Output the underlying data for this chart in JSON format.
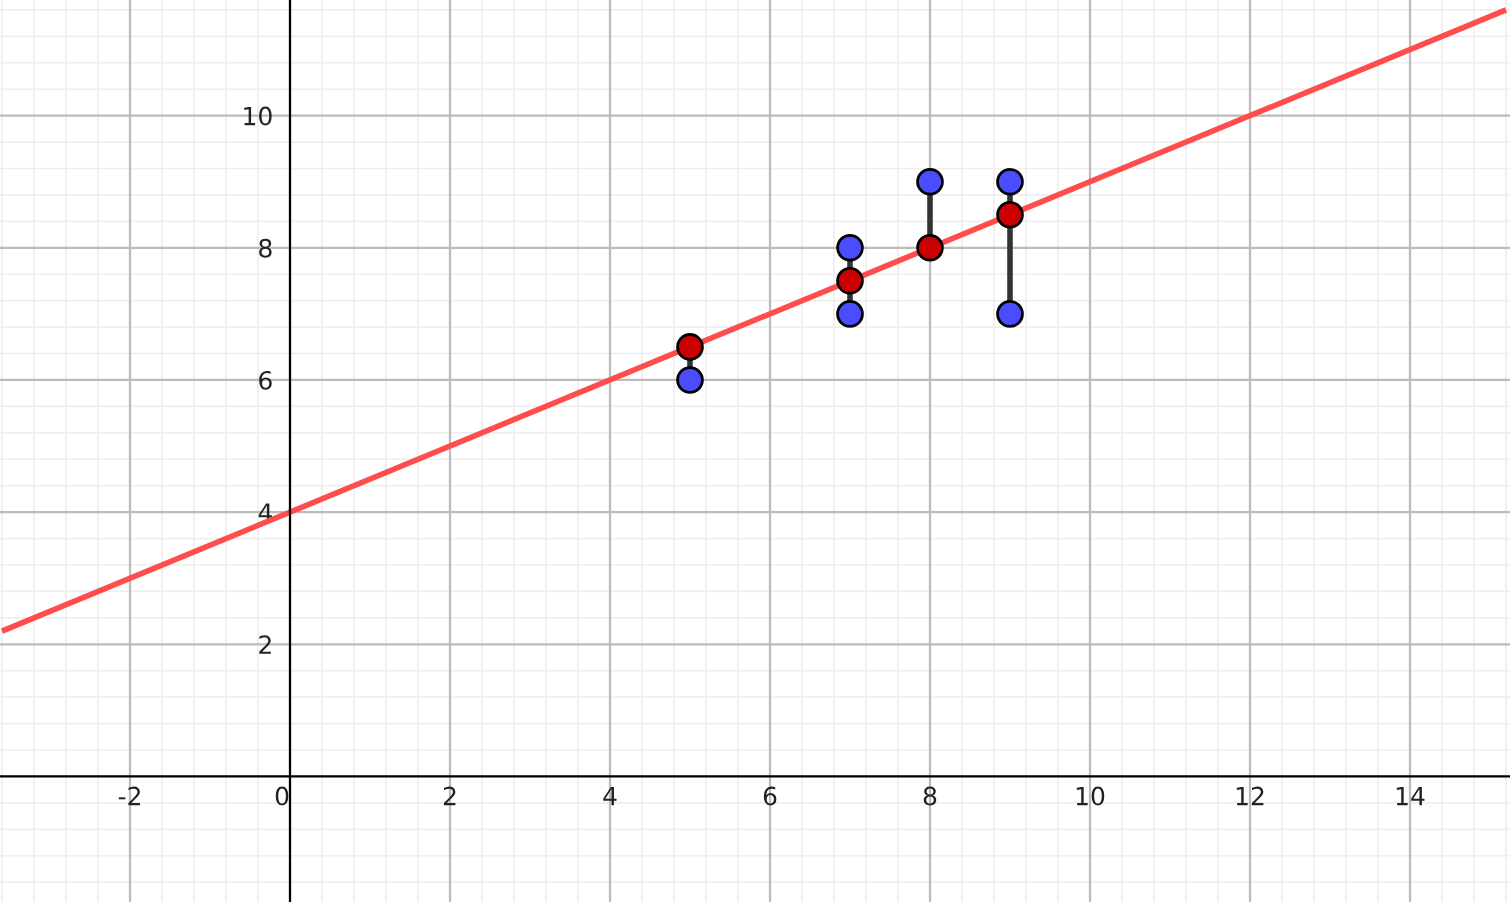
{
  "chart_data": {
    "type": "scatter",
    "xlim": [
      -3.625,
      15.25
    ],
    "ylim": [
      -1.9,
      11.75
    ],
    "xticks": [
      -2,
      0,
      2,
      4,
      6,
      8,
      10,
      12,
      14
    ],
    "yticks": [
      2,
      4,
      6,
      8,
      10
    ],
    "grid": true,
    "series": [
      {
        "type": "line",
        "color": "#ff4c4c",
        "x": [
          -3.6,
          15.2
        ],
        "values": [
          2.2,
          11.6
        ],
        "line_style": "solid",
        "marker": "none"
      },
      {
        "type": "line",
        "color": "#333333",
        "x": [
          5,
          5
        ],
        "values": [
          6,
          6.5
        ],
        "marker": "none"
      },
      {
        "type": "line",
        "color": "#333333",
        "x": [
          7,
          7
        ],
        "values": [
          7,
          8
        ],
        "marker": "none"
      },
      {
        "type": "line",
        "color": "#333333",
        "x": [
          8,
          8
        ],
        "values": [
          8,
          9
        ],
        "marker": "none"
      },
      {
        "type": "line",
        "color": "#333333",
        "x": [
          9,
          9
        ],
        "values": [
          7,
          9
        ],
        "marker": "none"
      },
      {
        "color": "#4c4cff",
        "x": [
          5,
          7,
          7,
          8,
          9,
          9
        ],
        "values": [
          6,
          8,
          7,
          9,
          9,
          7
        ],
        "marker": "circle"
      },
      {
        "color": "#cc0000",
        "x": [
          5,
          7,
          8,
          9
        ],
        "values": [
          6.5,
          7.5,
          8,
          8.5
        ],
        "marker": "circle"
      }
    ]
  }
}
